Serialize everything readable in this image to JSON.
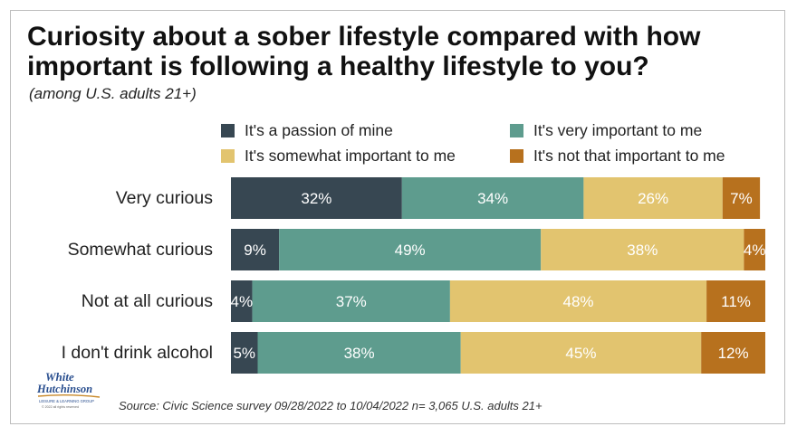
{
  "title": "Curiosity about a sober lifestyle compared with how important is following a healthy lifestyle to you?",
  "subtitle": "(among U.S. adults 21+)",
  "source": "Source: Civic Science survey 09/28/2022 to 10/04/2022 n= 3,065 U.S. adults 21+",
  "logo": {
    "line1": "White",
    "line2": "Hutchinson",
    "line3": "LEISURE & LEARNING GROUP",
    "line4": "© 2022 all rights reserved"
  },
  "chart_data": {
    "type": "bar",
    "orientation": "horizontal",
    "stacked": true,
    "title": "Curiosity about a sober lifestyle compared with how important is following a healthy lifestyle to you?",
    "subtitle": "(among U.S. adults 21+)",
    "xlabel": "",
    "ylabel": "",
    "grid": false,
    "legend_position": "top",
    "unit": "%",
    "categories": [
      "Very curious",
      "Somewhat curious",
      "Not at all curious",
      "I don't drink alcohol"
    ],
    "series": [
      {
        "name": "It's a passion of  mine",
        "color": "#374752",
        "values": [
          32,
          9,
          4,
          5
        ],
        "labels": [
          "32%",
          "9%",
          "4%",
          "5%"
        ]
      },
      {
        "name": "It's very important to me",
        "color": "#5e9c8e",
        "values": [
          34,
          49,
          37,
          38
        ],
        "labels": [
          "34%",
          "49%",
          "37%",
          "38%"
        ]
      },
      {
        "name": "It's somewhat important to me",
        "color": "#e2c46f",
        "values": [
          26,
          38,
          48,
          45
        ],
        "labels": [
          "26%",
          "38%",
          "48%",
          "45%"
        ]
      },
      {
        "name": "It's not that important to me",
        "color": "#b7711e",
        "values": [
          7,
          4,
          11,
          12
        ],
        "labels": [
          "7%",
          "4%",
          "11%",
          "12%"
        ]
      }
    ]
  }
}
